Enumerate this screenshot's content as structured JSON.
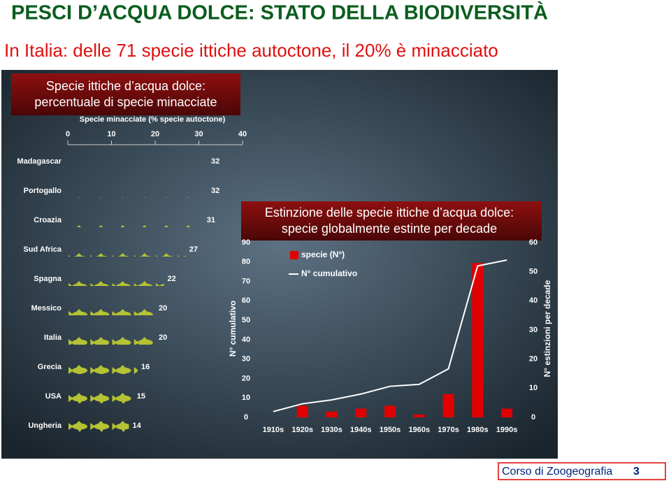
{
  "header": {
    "title": "PESCI D’ACQUA DOLCE: STATO DELLA BIODIVERSITÀ",
    "subtitle": "In Italia: delle 71 specie ittiche autoctone, il 20% è minacciato"
  },
  "chart_data": [
    {
      "type": "pictogram",
      "title": [
        "Specie ittiche d’acqua dolce:",
        "percentuale di specie minacciate"
      ],
      "xlabel": "Specie minacciate (% specie autoctone)",
      "categories": [
        "Madagascar",
        "Portogallo",
        "Croazia",
        "Sud Africa",
        "Spagna",
        "Messico",
        "Italia",
        "Grecia",
        "USA",
        "Ungheria"
      ],
      "values": [
        32,
        32,
        31,
        27,
        22,
        20,
        20,
        16,
        15,
        14
      ],
      "color": "#b5c234",
      "xlim": [
        0,
        40
      ],
      "xticks": [
        0,
        10,
        20,
        30,
        40
      ]
    },
    {
      "type": "bar_line",
      "title": [
        "Estinzione delle specie ittiche d’acqua dolce:",
        "specie globalmente estinte per decade"
      ],
      "ylabel": "N° cumulativo",
      "y2label": "N° estinzioni per decade",
      "categories": [
        "1910s",
        "1920s",
        "1930s",
        "1940s",
        "1950s",
        "1960s",
        "1970s",
        "1980s",
        "1990s"
      ],
      "series": [
        {
          "name": "specie (N°)",
          "type": "bar",
          "color": "#e00000",
          "axis": "y2",
          "values": [
            null,
            4,
            2,
            3,
            4,
            1,
            8,
            53,
            3
          ]
        },
        {
          "name": "N° cumulativo",
          "type": "line",
          "color": "#ffffff",
          "values": [
            3,
            7,
            9,
            12,
            16,
            17,
            25,
            78,
            81
          ]
        }
      ],
      "ylim": [
        0,
        90
      ],
      "yticks": [
        0,
        10,
        20,
        30,
        40,
        50,
        60,
        70,
        80,
        90
      ],
      "y2lim": [
        0,
        60
      ],
      "y2ticks": [
        0,
        10,
        20,
        30,
        40,
        50,
        60
      ]
    }
  ],
  "footer": {
    "text": "Corso di Zoogeografia",
    "number": "3"
  }
}
